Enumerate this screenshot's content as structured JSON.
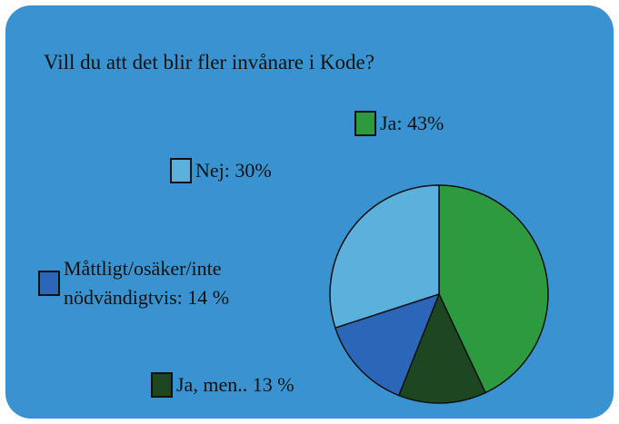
{
  "chart_data": {
    "type": "pie",
    "title": "Vill du att det blir fler invånare i Kode?",
    "categories": [
      "Ja: 43%",
      "Ja, men.. 13 %",
      "Måttligt/osäker/inte nödvändigtvis: 14 %",
      "Nej: 30%"
    ],
    "values": [
      43,
      13,
      14,
      30
    ],
    "colors": [
      "#2e9a40",
      "#1d4721",
      "#2c66b8",
      "#5cb0dc"
    ]
  }
}
